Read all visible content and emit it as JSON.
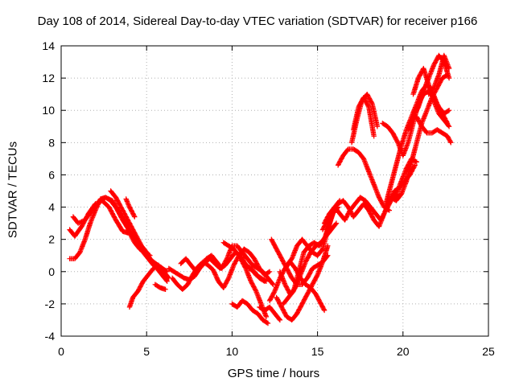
{
  "chart_data": {
    "type": "scatter",
    "title": "Day 108 of 2014, Sidereal Day-to-day VTEC variation (SDTVAR) for receiver p166",
    "xlabel": "GPS time / hours",
    "ylabel": "SDTVAR / TECUs",
    "xlim": [
      0,
      25
    ],
    "ylim": [
      -4,
      14
    ],
    "xticks": [
      "0",
      "5",
      "10",
      "15",
      "20",
      "25"
    ],
    "yticks": [
      "-4",
      "-2",
      "0",
      "2",
      "4",
      "6",
      "8",
      "10",
      "12",
      "14"
    ],
    "grid": true,
    "marker": "+",
    "color": "#ff0000",
    "series": [
      {
        "x": [
          0.5,
          0.8,
          1.2,
          1.6,
          2.0,
          2.4,
          2.8,
          3.2,
          3.6,
          3.9,
          4.1,
          4.3,
          4.6,
          5.0,
          5.4,
          5.8,
          6.2
        ],
        "y": [
          2.6,
          2.2,
          2.8,
          3.6,
          4.2,
          4.4,
          4.0,
          3.2,
          2.5,
          2.4,
          2.4,
          2.1,
          1.6,
          1.0,
          0.6,
          0.3,
          0.0
        ]
      },
      {
        "x": [
          0.5,
          0.8,
          1.1,
          1.4,
          1.7,
          2.0,
          2.3,
          2.6,
          2.9,
          3.2,
          3.5,
          3.8,
          4.0,
          4.3,
          4.6,
          4.9,
          5.2
        ],
        "y": [
          0.8,
          0.8,
          1.2,
          2.0,
          3.0,
          3.8,
          4.5,
          4.6,
          4.4,
          4.0,
          3.5,
          3.0,
          2.4,
          1.8,
          1.4,
          1.2,
          1.0
        ]
      },
      {
        "x": [
          0.7,
          1.0,
          1.4,
          1.8,
          2.2,
          2.6,
          3.0,
          3.3,
          3.6,
          3.9,
          4.2,
          4.5,
          4.8,
          5.1,
          5.4,
          5.7,
          6.0
        ],
        "y": [
          3.4,
          3.0,
          3.2,
          3.8,
          4.3,
          4.6,
          4.4,
          3.8,
          3.2,
          2.7,
          2.2,
          1.6,
          1.2,
          0.8,
          0.4,
          0.2,
          0.0
        ]
      },
      {
        "x": [
          2.9,
          3.2,
          3.5,
          3.8,
          4.1,
          4.4,
          4.7,
          5.0,
          5.3,
          5.6,
          5.9,
          6.2
        ],
        "y": [
          5.0,
          4.6,
          4.0,
          3.4,
          2.8,
          2.2,
          1.6,
          1.2,
          0.6,
          0.2,
          -0.2,
          -0.6
        ]
      },
      {
        "x": [
          4.0,
          4.2,
          4.5,
          4.8,
          5.1,
          5.4,
          5.7,
          6.0,
          6.3
        ],
        "y": [
          -2.2,
          -1.6,
          -1.2,
          -0.6,
          -0.2,
          0.2,
          0.4,
          0.0,
          -0.4
        ]
      },
      {
        "x": [
          3.8,
          4.0,
          4.3
        ],
        "y": [
          4.5,
          4.0,
          3.4
        ]
      },
      {
        "x": [
          5.5,
          5.8,
          6.1
        ],
        "y": [
          -0.8,
          -1.0,
          -1.1
        ]
      },
      {
        "x": [
          6.3,
          6.6,
          6.9,
          7.2,
          7.5,
          7.8,
          8.1,
          8.4,
          8.7,
          9.0,
          9.3,
          9.6,
          9.9,
          10.2,
          10.5,
          10.8,
          11.1,
          11.4,
          11.7,
          12.0
        ],
        "y": [
          0.2,
          0.0,
          -0.2,
          -0.4,
          -0.5,
          -0.3,
          0.2,
          0.6,
          0.8,
          0.5,
          0.2,
          0.4,
          0.8,
          1.2,
          1.0,
          0.4,
          0.2,
          -0.2,
          -0.4,
          -0.6
        ]
      },
      {
        "x": [
          6.5,
          6.8,
          7.1,
          7.4,
          7.7,
          8.0,
          8.3,
          8.6,
          8.9,
          9.2,
          9.5,
          9.8,
          10.1,
          10.4,
          10.7,
          11.0,
          11.3,
          11.6,
          11.9,
          12.2
        ],
        "y": [
          -0.4,
          -0.8,
          -1.1,
          -0.8,
          -0.2,
          0.3,
          0.6,
          0.4,
          0.1,
          -0.6,
          -1.0,
          -0.4,
          0.4,
          1.0,
          1.4,
          1.2,
          0.8,
          0.2,
          -0.2,
          0.0
        ]
      },
      {
        "x": [
          7.0,
          7.3,
          7.6,
          7.9,
          8.2,
          8.5,
          8.8,
          9.1,
          9.4,
          9.7,
          10.0,
          10.3,
          10.6,
          10.9,
          11.2,
          11.5,
          11.8,
          12.1,
          12.4
        ],
        "y": [
          0.5,
          0.8,
          0.4,
          0.0,
          0.3,
          0.8,
          1.0,
          0.6,
          0.2,
          0.8,
          1.6,
          1.6,
          1.2,
          0.8,
          0.4,
          0.2,
          0.0,
          -0.4,
          -0.8
        ]
      },
      {
        "x": [
          9.5,
          9.8,
          10.1,
          10.4,
          10.7,
          11.0,
          11.3,
          11.6,
          11.9
        ],
        "y": [
          1.8,
          1.6,
          1.4,
          1.0,
          0.6,
          0.2,
          0.0,
          -0.4,
          -0.6
        ]
      },
      {
        "x": [
          10.0,
          10.3,
          10.6,
          10.9,
          11.2,
          11.5,
          11.8,
          12.1
        ],
        "y": [
          -2.0,
          -2.2,
          -1.8,
          -2.0,
          -2.4,
          -2.6,
          -3.0,
          -3.2
        ]
      },
      {
        "x": [
          10.5,
          10.8,
          11.1,
          11.4,
          11.7,
          12.0
        ],
        "y": [
          0.8,
          0.2,
          -0.6,
          -1.2,
          -2.0,
          -2.8
        ]
      },
      {
        "x": [
          11.6,
          11.9,
          12.2,
          12.5,
          12.8
        ],
        "y": [
          -2.2,
          -2.4,
          -2.2,
          -2.6,
          -3.0
        ]
      },
      {
        "x": [
          12.2,
          12.5,
          12.8,
          13.1,
          13.4,
          13.7,
          14.0,
          14.3,
          14.6,
          14.9,
          15.2,
          15.4
        ],
        "y": [
          -1.8,
          -1.2,
          -0.4,
          0.2,
          0.6,
          0.2,
          -0.4,
          -0.8,
          -1.0,
          -1.4,
          -2.0,
          -2.4
        ]
      },
      {
        "x": [
          12.3,
          12.6,
          12.9,
          13.2,
          13.5,
          13.8,
          14.1,
          14.4,
          14.7,
          15.0,
          15.3,
          15.6
        ],
        "y": [
          2.0,
          1.4,
          0.8,
          0.2,
          -0.4,
          -0.8,
          -0.8,
          -0.4,
          0.2,
          0.4,
          0.6,
          1.0
        ]
      },
      {
        "x": [
          12.6,
          12.9,
          13.2,
          13.5,
          13.8,
          14.1,
          14.4,
          14.7,
          15.0,
          15.3,
          15.6
        ],
        "y": [
          -1.6,
          -2.2,
          -2.8,
          -3.0,
          -2.6,
          -2.0,
          -1.4,
          -0.8,
          -0.2,
          0.6,
          1.6
        ]
      },
      {
        "x": [
          12.8,
          13.1,
          13.4,
          13.7,
          14.0,
          14.3,
          14.6,
          14.9,
          15.2,
          15.5,
          15.8,
          16.1
        ],
        "y": [
          0.0,
          -0.8,
          -1.4,
          -1.0,
          -0.2,
          0.6,
          1.2,
          1.6,
          1.8,
          2.2,
          2.6,
          3.0
        ]
      },
      {
        "x": [
          13.0,
          13.3,
          13.6,
          13.9,
          14.2,
          14.5,
          14.8,
          15.1,
          15.4,
          15.7,
          16.0,
          16.3
        ],
        "y": [
          -2.0,
          -1.6,
          -1.2,
          0.0,
          1.2,
          1.6,
          1.8,
          1.6,
          2.0,
          3.0,
          4.0,
          4.4
        ]
      },
      {
        "x": [
          13.2,
          13.5,
          13.8,
          14.1,
          14.4,
          14.7,
          15.0,
          15.3,
          15.6,
          15.9,
          16.2
        ],
        "y": [
          0.4,
          0.8,
          1.6,
          2.0,
          1.6,
          1.2,
          1.0,
          1.4,
          2.6,
          3.6,
          4.0
        ]
      },
      {
        "x": [
          15.3,
          15.6,
          15.9,
          16.2,
          16.5,
          16.8,
          17.1,
          17.4,
          17.7,
          18.0,
          18.3,
          18.6,
          18.9,
          19.2,
          19.5,
          19.8,
          20.1,
          20.4,
          20.7
        ],
        "y": [
          2.6,
          3.2,
          3.8,
          4.2,
          4.4,
          4.0,
          3.4,
          3.8,
          4.2,
          3.8,
          3.2,
          2.8,
          3.6,
          4.4,
          5.0,
          5.2,
          5.6,
          6.0,
          6.6
        ]
      },
      {
        "x": [
          15.4,
          15.7,
          16.0,
          16.3,
          16.6,
          16.9,
          17.2,
          17.5,
          17.8,
          18.1,
          18.4,
          18.7,
          19.0,
          19.3,
          19.6,
          19.9,
          20.2,
          20.5,
          20.8
        ],
        "y": [
          3.0,
          3.6,
          4.0,
          3.6,
          3.2,
          3.8,
          4.2,
          4.6,
          4.4,
          4.0,
          3.6,
          3.2,
          3.8,
          4.4,
          4.8,
          5.6,
          6.4,
          7.0,
          6.8
        ]
      },
      {
        "x": [
          16.2,
          16.5,
          16.8,
          17.1,
          17.4,
          17.7,
          18.0,
          18.3,
          18.6,
          18.9,
          19.2
        ],
        "y": [
          6.6,
          7.2,
          7.6,
          7.6,
          7.4,
          7.0,
          6.2,
          5.4,
          4.6,
          4.0,
          3.8
        ]
      },
      {
        "x": [
          17.0,
          17.3,
          17.6,
          17.9,
          18.2,
          18.5
        ],
        "y": [
          8.0,
          9.4,
          10.6,
          11.0,
          10.4,
          9.0
        ]
      },
      {
        "x": [
          17.1,
          17.4,
          17.7,
          18.0,
          18.3
        ],
        "y": [
          8.8,
          10.2,
          10.8,
          10.2,
          8.4
        ]
      },
      {
        "x": [
          18.8,
          19.1,
          19.4,
          19.7,
          20.0,
          20.3,
          20.6,
          20.9,
          21.2,
          21.5,
          21.8,
          22.1,
          22.4,
          22.7
        ],
        "y": [
          9.2,
          9.0,
          8.6,
          8.0,
          7.2,
          8.0,
          9.2,
          10.4,
          11.0,
          11.2,
          10.8,
          10.2,
          9.8,
          10.0
        ]
      },
      {
        "x": [
          19.0,
          19.3,
          19.6,
          19.9,
          20.2,
          20.5,
          20.8,
          21.1,
          21.4,
          21.7,
          22.0,
          22.3,
          22.6
        ],
        "y": [
          4.2,
          5.4,
          6.6,
          7.8,
          8.8,
          9.6,
          10.4,
          11.2,
          11.6,
          11.2,
          10.4,
          9.8,
          9.2
        ]
      },
      {
        "x": [
          19.3,
          19.6,
          19.9,
          20.2,
          20.5,
          20.8,
          21.1,
          21.4,
          21.7,
          22.0,
          22.3,
          22.6
        ],
        "y": [
          4.6,
          4.4,
          4.8,
          5.6,
          6.8,
          8.0,
          9.2,
          10.0,
          10.8,
          11.4,
          12.0,
          12.2
        ]
      },
      {
        "x": [
          20.3,
          20.6,
          20.9,
          21.2,
          21.5,
          21.8,
          22.1,
          22.4,
          22.7
        ],
        "y": [
          8.8,
          9.6,
          10.2,
          11.2,
          12.0,
          12.8,
          13.4,
          13.0,
          12.0
        ]
      },
      {
        "x": [
          20.6,
          20.9,
          21.2,
          21.5,
          21.8,
          22.1,
          22.4,
          22.7
        ],
        "y": [
          11.0,
          12.0,
          12.6,
          11.6,
          10.6,
          9.8,
          9.4,
          9.0
        ]
      },
      {
        "x": [
          20.8,
          21.1,
          21.4,
          21.7,
          22.0,
          22.3,
          22.6,
          22.8
        ],
        "y": [
          9.6,
          9.0,
          8.6,
          8.6,
          8.8,
          8.6,
          8.4,
          8.0
        ]
      },
      {
        "x": [
          21.5,
          21.8,
          22.1,
          22.4,
          22.7
        ],
        "y": [
          11.0,
          11.4,
          12.2,
          13.4,
          12.6
        ]
      }
    ]
  }
}
